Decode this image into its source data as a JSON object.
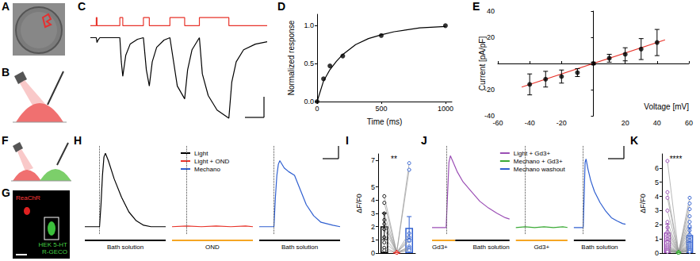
{
  "diagrams": [
    {
      "panel": "A"
    },
    {
      "panel": "B"
    },
    {
      "panel": "F"
    },
    {
      "panel": "G",
      "labels": [
        "ReaChR",
        "HEK 5-HT",
        "R-GECO"
      ]
    }
  ],
  "chart_data": [
    {
      "panel": "C",
      "type": "line",
      "tick_labels": false,
      "xlim": [
        0,
        6000
      ],
      "ylim": [
        -1.05,
        0.35
      ],
      "y2lim": [
        -12,
        2
      ],
      "series": [
        {
          "color": "#e8332a",
          "axis": "y2",
          "x": [
            0,
            200,
            200,
            225,
            225,
            1000,
            1000,
            1100,
            1100,
            1800,
            1800,
            2000,
            2000,
            2700,
            2700,
            3200,
            3200,
            3700,
            3700,
            4700,
            4700,
            6000
          ],
          "values": [
            0,
            0,
            1,
            1,
            0,
            0,
            1,
            1,
            0,
            0,
            1,
            1,
            0,
            0,
            1,
            1,
            0,
            0,
            1,
            1,
            0,
            0
          ]
        },
        {
          "color": "#000000",
          "x": [
            0,
            200,
            225,
            260,
            320,
            1000,
            1050,
            1100,
            1200,
            1350,
            1600,
            1800,
            1900,
            2000,
            2100,
            2250,
            2500,
            2700,
            2950,
            3200,
            3300,
            3450,
            3650,
            3700,
            3800,
            4000,
            4300,
            4700,
            4800,
            4950,
            5200,
            5600,
            6000
          ],
          "values": [
            0,
            0,
            -0.06,
            -0.03,
            0,
            0,
            -0.3,
            -0.48,
            -0.22,
            -0.08,
            -0.02,
            0,
            -0.4,
            -0.6,
            -0.3,
            -0.12,
            -0.03,
            0,
            -0.6,
            -0.76,
            -0.4,
            -0.15,
            -0.03,
            0,
            -0.45,
            -0.72,
            -0.9,
            -1.0,
            -0.55,
            -0.3,
            -0.15,
            -0.08,
            -0.05
          ]
        }
      ]
    },
    {
      "panel": "D",
      "type": "scatter",
      "xlabel": "Time (ms)",
      "ylabel": "Normalized response",
      "xlim": [
        0,
        1050
      ],
      "ylim": [
        0,
        1.15
      ],
      "xticks": [
        0,
        500,
        1000
      ],
      "yticks": [
        {
          "value": 0,
          "label": "0.0"
        },
        {
          "value": 0.5,
          "label": "0.5"
        },
        {
          "value": 1,
          "label": "1.0"
        }
      ],
      "series": [
        {
          "type": "scatter",
          "color": "#000000",
          "marker": "circle",
          "x": [
            0,
            50,
            100,
            200,
            500,
            1000
          ],
          "values": [
            0,
            0.3,
            0.47,
            0.6,
            0.87,
            1.0
          ]
        },
        {
          "type": "line",
          "color": "#000000",
          "x": [
            0,
            50,
            100,
            150,
            200,
            300,
            400,
            500,
            600,
            800,
            1000
          ],
          "values": [
            0,
            0.27,
            0.42,
            0.53,
            0.62,
            0.75,
            0.83,
            0.88,
            0.92,
            0.97,
            0.99
          ]
        }
      ]
    },
    {
      "panel": "E",
      "type": "scatter",
      "xlabel": "Voltage [mV]",
      "ylabel": "Current [pA/pF]",
      "xlim": [
        -60,
        60
      ],
      "ylim": [
        -40,
        40
      ],
      "xticks": [
        -60,
        -40,
        -20,
        20,
        40,
        60
      ],
      "yticks": [
        -40,
        -20,
        20,
        40
      ],
      "series": [
        {
          "type": "scatter",
          "color": "#000000",
          "marker": "circle",
          "x": [
            -40,
            -30,
            -20,
            -10,
            0,
            10,
            20,
            30,
            40
          ],
          "values": [
            -16,
            -12,
            -10,
            -7,
            0,
            4,
            7,
            11,
            16
          ],
          "errors": [
            8,
            6,
            5,
            3,
            1,
            3,
            5,
            8,
            10
          ]
        },
        {
          "type": "line",
          "color": "#e8332a",
          "x": [
            -45,
            45
          ],
          "values": [
            -18,
            18
          ]
        }
      ]
    },
    {
      "panel": "H",
      "type": "traces",
      "legend": "top",
      "tick_labels": false,
      "xlim": [
        0,
        55
      ],
      "ylim": [
        -0.1,
        1.1
      ],
      "stimulus": 10,
      "series": [
        {
          "name": "Light",
          "color": "#000000",
          "x": [
            0,
            10,
            11,
            12,
            13,
            14,
            16,
            20,
            25,
            30,
            35,
            40,
            45,
            50,
            55
          ],
          "values": [
            0,
            0,
            0.3,
            0.7,
            0.95,
            1.0,
            0.9,
            0.65,
            0.4,
            0.2,
            0.08,
            0.02,
            0,
            0,
            0
          ],
          "conditions": [
            {
              "label": "Bath solution",
              "color": "#000000"
            }
          ]
        },
        {
          "name": "Light + OND",
          "color": "#e8332a",
          "x": [
            0,
            10,
            20,
            30,
            40,
            50,
            55
          ],
          "values": [
            0,
            0.01,
            0,
            0.01,
            0,
            0.01,
            0
          ],
          "conditions": [
            {
              "label": "OND",
              "color": "#f5a623"
            }
          ]
        },
        {
          "name": "Mechano",
          "color": "#2f5fd0",
          "x": [
            0,
            10,
            11,
            12,
            13,
            14,
            17,
            20,
            24,
            28,
            32,
            37,
            42,
            50,
            55
          ],
          "values": [
            0,
            0,
            0.4,
            0.7,
            0.85,
            0.9,
            0.8,
            0.75,
            0.7,
            0.5,
            0.3,
            0.15,
            0.06,
            0.02,
            0
          ],
          "conditions": [
            {
              "label": "Bath solution",
              "color": "#000000"
            }
          ]
        }
      ]
    },
    {
      "panel": "I",
      "type": "bar",
      "ylabel": "ΔF/F0",
      "annotation": "**",
      "marker": "circle",
      "categories": [
        null,
        null,
        null
      ],
      "ylim": [
        0,
        7.5
      ],
      "yticks": [
        0,
        1,
        2,
        3,
        4,
        5,
        7
      ],
      "values": [
        2.02,
        0.04,
        1.91
      ],
      "errors": [
        1.0,
        0.02,
        0.85
      ],
      "colors": [
        "#000000",
        "#e8332a",
        "#2f5fd0"
      ],
      "series": [
        {
          "color": "#9a9a9a",
          "values": [
            4.3,
            0.05,
            6.8
          ]
        },
        {
          "color": "#9a9a9a",
          "values": [
            3.8,
            0.04,
            1.5
          ]
        },
        {
          "color": "#9a9a9a",
          "values": [
            3.0,
            0.06,
            6.3
          ]
        },
        {
          "color": "#9a9a9a",
          "values": [
            2.5,
            0.03,
            1.2
          ]
        },
        {
          "color": "#9a9a9a",
          "values": [
            2.2,
            0.05,
            0.9
          ]
        },
        {
          "color": "#9a9a9a",
          "values": [
            1.8,
            0.04,
            1.0
          ]
        },
        {
          "color": "#9a9a9a",
          "values": [
            1.2,
            0.03,
            0.5
          ]
        },
        {
          "color": "#9a9a9a",
          "values": [
            0.8,
            0.05,
            0.4
          ]
        },
        {
          "color": "#9a9a9a",
          "values": [
            0.4,
            0.04,
            0.3
          ]
        },
        {
          "color": "#9a9a9a",
          "values": [
            0.2,
            0.03,
            0.2
          ]
        }
      ]
    },
    {
      "panel": "J",
      "type": "traces",
      "legend": "top",
      "tick_labels": false,
      "xlim": [
        0,
        55
      ],
      "ylim": [
        -0.1,
        1.25
      ],
      "stimulus": 10,
      "series": [
        {
          "name": "Light + Gd3+",
          "color": "#9b4fb5",
          "x": [
            0,
            10,
            11,
            12,
            13,
            15,
            18,
            22,
            28,
            34,
            40,
            46,
            52,
            55
          ],
          "values": [
            0,
            0,
            0.5,
            1.0,
            1.1,
            1.0,
            0.85,
            0.7,
            0.55,
            0.4,
            0.3,
            0.22,
            0.15,
            0.13
          ],
          "conditions": [
            {
              "label": "Gd3+",
              "color": "#f5a623"
            },
            {
              "label": "Bath solution",
              "color": "#000000"
            }
          ]
        },
        {
          "name": "Mechano + Gd3+",
          "color": "#3aaa35",
          "x": [
            0,
            10,
            20,
            30,
            40,
            50,
            55
          ],
          "values": [
            0,
            0.01,
            0,
            0.01,
            0,
            0.01,
            0
          ],
          "conditions": [
            {
              "label": "Gd3+",
              "color": "#f5a623"
            }
          ]
        },
        {
          "name": "Mechano washout",
          "color": "#2f5fd0",
          "x": [
            0,
            10,
            11,
            12,
            13,
            15,
            18,
            22,
            28,
            34,
            40,
            46,
            52,
            55
          ],
          "values": [
            0,
            0,
            0.5,
            1.0,
            1.05,
            0.9,
            0.72,
            0.55,
            0.38,
            0.25,
            0.15,
            0.1,
            0.06,
            0.05
          ],
          "conditions": [
            {
              "label": "Bath solution",
              "color": "#000000"
            }
          ]
        }
      ]
    },
    {
      "panel": "K",
      "type": "bar",
      "ylabel": "ΔF/F0",
      "annotation": "****",
      "marker": "circle",
      "categories": [
        null,
        null,
        null
      ],
      "ylim": [
        0,
        7
      ],
      "yticks": [
        0,
        1,
        2,
        3,
        4,
        5,
        6
      ],
      "values": [
        1.45,
        0.05,
        1.28
      ],
      "errors": [
        0.6,
        0.02,
        0.5
      ],
      "colors": [
        "#9b4fb5",
        "#3aaa35",
        "#2f5fd0"
      ],
      "series": [
        {
          "color": "#9a9a9a",
          "values": [
            6.5,
            0.06,
            3.9
          ]
        },
        {
          "color": "#9a9a9a",
          "values": [
            4.3,
            0.04,
            3.5
          ]
        },
        {
          "color": "#9a9a9a",
          "values": [
            3.9,
            0.05,
            3.1
          ]
        },
        {
          "color": "#9a9a9a",
          "values": [
            3.0,
            0.03,
            2.6
          ]
        },
        {
          "color": "#9a9a9a",
          "values": [
            2.2,
            0.07,
            2.2
          ]
        },
        {
          "color": "#9a9a9a",
          "values": [
            1.8,
            0.04,
            1.9
          ]
        },
        {
          "color": "#9a9a9a",
          "values": [
            1.5,
            0.05,
            1.6
          ]
        },
        {
          "color": "#9a9a9a",
          "values": [
            1.2,
            0.03,
            1.3
          ]
        },
        {
          "color": "#9a9a9a",
          "values": [
            1.0,
            0.06,
            1.1
          ]
        },
        {
          "color": "#9a9a9a",
          "values": [
            0.8,
            0.04,
            0.9
          ]
        },
        {
          "color": "#9a9a9a",
          "values": [
            0.6,
            0.05,
            0.7
          ]
        },
        {
          "color": "#9a9a9a",
          "values": [
            0.5,
            0.03,
            0.6
          ]
        },
        {
          "color": "#9a9a9a",
          "values": [
            0.4,
            0.04,
            0.5
          ]
        },
        {
          "color": "#9a9a9a",
          "values": [
            0.3,
            0.06,
            0.4
          ]
        },
        {
          "color": "#9a9a9a",
          "values": [
            0.3,
            0.05,
            0.3
          ]
        },
        {
          "color": "#9a9a9a",
          "values": [
            0.2,
            0.03,
            0.3
          ]
        },
        {
          "color": "#9a9a9a",
          "values": [
            0.2,
            0.04,
            0.2
          ]
        },
        {
          "color": "#9a9a9a",
          "values": [
            0.1,
            0.05,
            0.2
          ]
        },
        {
          "color": "#9a9a9a",
          "values": [
            0.1,
            0.03,
            0.1
          ]
        },
        {
          "color": "#9a9a9a",
          "values": [
            0.1,
            0.04,
            0.1
          ]
        }
      ]
    }
  ]
}
